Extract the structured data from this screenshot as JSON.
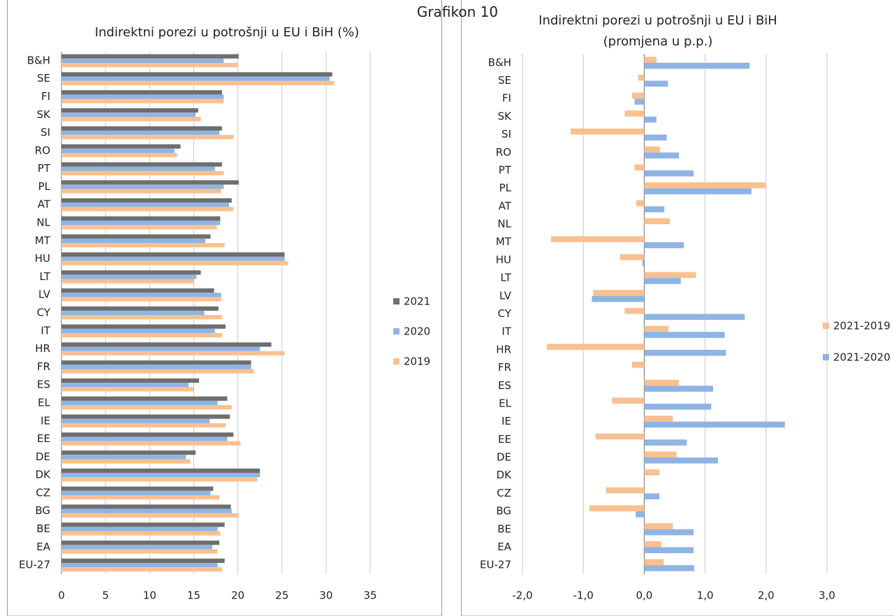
{
  "page_title": "Grafikon 10",
  "chart_data": [
    {
      "type": "hbar",
      "title": "Indirektni porezi u potrošnji u EU i BiH (%)",
      "categories": [
        "B&H",
        "SE",
        "FI",
        "SK",
        "SI",
        "RO",
        "PT",
        "PL",
        "AT",
        "NL",
        "MT",
        "HU",
        "LT",
        "LV",
        "CY",
        "IT",
        "HR",
        "FR",
        "ES",
        "EL",
        "IE",
        "EE",
        "DE",
        "DK",
        "CZ",
        "BG",
        "BE",
        "EA",
        "EU-27"
      ],
      "series": [
        {
          "name": "2021",
          "color": "#6e6e6e",
          "values": [
            20.1,
            30.7,
            18.2,
            15.5,
            18.2,
            13.5,
            18.2,
            20.1,
            19.3,
            18.0,
            16.9,
            25.3,
            15.8,
            17.3,
            17.8,
            18.6,
            23.8,
            21.5,
            15.6,
            18.8,
            19.1,
            19.5,
            15.2,
            22.5,
            17.2,
            19.2,
            18.5,
            17.9,
            18.5
          ]
        },
        {
          "name": "2020",
          "color": "#8eb4e3",
          "values": [
            18.4,
            30.4,
            18.4,
            15.2,
            17.9,
            12.8,
            17.4,
            18.4,
            19.0,
            18.0,
            16.3,
            25.3,
            15.3,
            18.1,
            16.2,
            17.4,
            22.5,
            21.5,
            14.4,
            17.7,
            16.8,
            18.8,
            14.1,
            22.5,
            16.9,
            19.3,
            17.7,
            17.1,
            17.7
          ]
        },
        {
          "name": "2019",
          "color": "#fac090",
          "values": [
            20.0,
            30.9,
            18.4,
            15.8,
            19.5,
            13.1,
            18.4,
            18.1,
            19.5,
            17.6,
            18.5,
            25.7,
            15.0,
            18.1,
            18.2,
            18.2,
            25.3,
            21.8,
            15.0,
            19.3,
            18.6,
            20.3,
            14.6,
            22.2,
            17.9,
            20.1,
            18.0,
            17.7,
            18.2
          ]
        }
      ],
      "xlim": [
        0,
        35
      ],
      "xticks": [
        0,
        5,
        10,
        15,
        20,
        25,
        30,
        35
      ],
      "grid": true,
      "legend": "right"
    },
    {
      "type": "hbar",
      "title": "Indirektni porezi u potrošnji u EU i BiH",
      "subtitle": "(promjena u p.p.)",
      "categories": [
        "B&H",
        "SE",
        "FI",
        "SK",
        "SI",
        "RO",
        "PT",
        "PL",
        "AT",
        "NL",
        "MT",
        "HU",
        "LT",
        "LV",
        "CY",
        "IT",
        "HR",
        "FR",
        "ES",
        "EL",
        "IE",
        "EE",
        "DE",
        "DK",
        "CZ",
        "BG",
        "BE",
        "EA",
        "EU-27"
      ],
      "series": [
        {
          "name": "2021-2019",
          "color": "#fac090",
          "values": [
            0.2,
            -0.1,
            -0.2,
            -0.32,
            -1.21,
            0.26,
            -0.16,
            1.99,
            -0.13,
            0.42,
            -1.53,
            -0.4,
            0.85,
            -0.84,
            -0.32,
            0.4,
            -1.6,
            -0.2,
            0.57,
            -0.53,
            0.47,
            -0.8,
            0.53,
            0.25,
            -0.63,
            -0.9,
            0.47,
            0.28,
            0.32
          ]
        },
        {
          "name": "2021-2020",
          "color": "#8eb4e3",
          "values": [
            1.73,
            0.39,
            -0.16,
            0.2,
            0.37,
            0.57,
            0.81,
            1.76,
            0.33,
            -0.01,
            0.65,
            -0.03,
            0.6,
            -0.86,
            1.65,
            1.32,
            1.34,
            0.0,
            1.13,
            1.1,
            2.31,
            0.7,
            1.21,
            0.0,
            0.25,
            -0.14,
            0.81,
            0.81,
            0.82
          ]
        }
      ],
      "xlim": [
        -2,
        3
      ],
      "xticks": [
        {
          "value": -2,
          "label": "-2,0"
        },
        {
          "value": -1,
          "label": "-1,0"
        },
        {
          "value": 0,
          "label": "0,0"
        },
        {
          "value": 1,
          "label": "1,0"
        },
        {
          "value": 2,
          "label": "2,0"
        },
        {
          "value": 3,
          "label": "3,0"
        }
      ],
      "grid": true,
      "legend": "right"
    }
  ]
}
